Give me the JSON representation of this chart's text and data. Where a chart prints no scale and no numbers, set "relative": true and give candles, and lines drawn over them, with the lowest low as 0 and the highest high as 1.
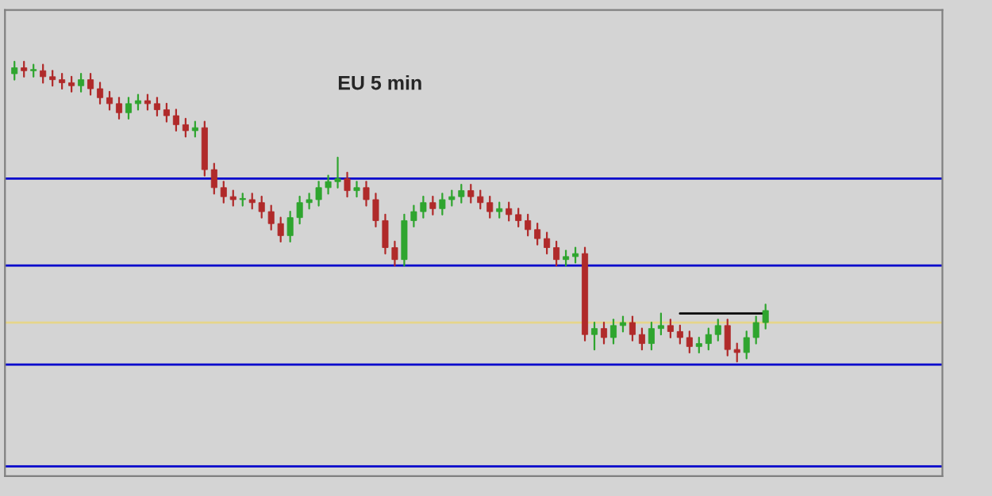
{
  "chart_data": {
    "type": "candlestick",
    "title": "EU 5 min",
    "relative": true,
    "categories": [
      null,
      null,
      null,
      null,
      null,
      null,
      null,
      null,
      null,
      null,
      null,
      null,
      null,
      null,
      null,
      null,
      null,
      null,
      null,
      null,
      null,
      null,
      null,
      null,
      null,
      null,
      null,
      null,
      null,
      null,
      null,
      null,
      null,
      null,
      null,
      null,
      null,
      null,
      null,
      null,
      null,
      null,
      null,
      null,
      null,
      null,
      null,
      null,
      null,
      null,
      null,
      null,
      null,
      null,
      null,
      null,
      null,
      null,
      null,
      null,
      null,
      null,
      null,
      null,
      null,
      null,
      null,
      null,
      null,
      null,
      null,
      null,
      null,
      null,
      null,
      null,
      null,
      null,
      null,
      null
    ],
    "colors": [
      "#2fa52f",
      "#b02a2a",
      "#2fa52f",
      "#b02a2a",
      "#b02a2a",
      "#b02a2a",
      "#b02a2a",
      "#2fa52f",
      "#b02a2a",
      "#b02a2a",
      "#b02a2a",
      "#b02a2a",
      "#2fa52f",
      "#2fa52f",
      "#b02a2a",
      "#b02a2a",
      "#b02a2a",
      "#b02a2a",
      "#b02a2a",
      "#2fa52f",
      "#b02a2a",
      "#b02a2a",
      "#b02a2a",
      "#b02a2a",
      "#2fa52f",
      "#b02a2a",
      "#b02a2a",
      "#b02a2a",
      "#b02a2a",
      "#2fa52f",
      "#2fa52f",
      "#2fa52f",
      "#2fa52f",
      "#2fa52f",
      "#2fa52f",
      "#b02a2a",
      "#2fa52f",
      "#b02a2a",
      "#b02a2a",
      "#b02a2a",
      "#b02a2a",
      "#2fa52f",
      "#2fa52f",
      "#2fa52f",
      "#b02a2a",
      "#2fa52f",
      "#2fa52f",
      "#2fa52f",
      "#b02a2a",
      "#b02a2a",
      "#b02a2a",
      "#2fa52f",
      "#b02a2a",
      "#b02a2a",
      "#b02a2a",
      "#b02a2a",
      "#b02a2a",
      "#b02a2a",
      "#2fa52f",
      "#2fa52f",
      "#b02a2a",
      "#2fa52f",
      "#b02a2a",
      "#2fa52f",
      "#2fa52f",
      "#b02a2a",
      "#b02a2a",
      "#2fa52f",
      "#2fa52f",
      "#b02a2a",
      "#b02a2a",
      "#b02a2a",
      "#2fa52f",
      "#2fa52f",
      "#2fa52f",
      "#b02a2a",
      "#b02a2a",
      "#2fa52f",
      "#2fa52f",
      "#2fa52f"
    ],
    "ohlc": [
      [
        0.96,
        1.0,
        0.94,
        0.98
      ],
      [
        0.98,
        1.0,
        0.95,
        0.97
      ],
      [
        0.97,
        0.99,
        0.95,
        0.97
      ],
      [
        0.97,
        0.99,
        0.93,
        0.95
      ],
      [
        0.95,
        0.97,
        0.92,
        0.94
      ],
      [
        0.94,
        0.96,
        0.91,
        0.93
      ],
      [
        0.93,
        0.95,
        0.9,
        0.92
      ],
      [
        0.92,
        0.96,
        0.9,
        0.94
      ],
      [
        0.94,
        0.96,
        0.89,
        0.91
      ],
      [
        0.91,
        0.93,
        0.86,
        0.88
      ],
      [
        0.88,
        0.9,
        0.84,
        0.86
      ],
      [
        0.86,
        0.88,
        0.81,
        0.83
      ],
      [
        0.83,
        0.88,
        0.81,
        0.86
      ],
      [
        0.86,
        0.89,
        0.84,
        0.87
      ],
      [
        0.87,
        0.89,
        0.84,
        0.86
      ],
      [
        0.86,
        0.88,
        0.82,
        0.84
      ],
      [
        0.84,
        0.86,
        0.8,
        0.82
      ],
      [
        0.82,
        0.84,
        0.77,
        0.79
      ],
      [
        0.79,
        0.81,
        0.75,
        0.77
      ],
      [
        0.77,
        0.8,
        0.75,
        0.78
      ],
      [
        0.78,
        0.8,
        0.62,
        0.64
      ],
      [
        0.64,
        0.66,
        0.56,
        0.58
      ],
      [
        0.58,
        0.6,
        0.53,
        0.55
      ],
      [
        0.55,
        0.57,
        0.52,
        0.54
      ],
      [
        0.54,
        0.56,
        0.52,
        0.54
      ],
      [
        0.54,
        0.56,
        0.51,
        0.53
      ],
      [
        0.53,
        0.55,
        0.48,
        0.5
      ],
      [
        0.5,
        0.52,
        0.44,
        0.46
      ],
      [
        0.46,
        0.48,
        0.4,
        0.42
      ],
      [
        0.42,
        0.5,
        0.4,
        0.48
      ],
      [
        0.48,
        0.55,
        0.46,
        0.53
      ],
      [
        0.53,
        0.56,
        0.51,
        0.54
      ],
      [
        0.54,
        0.6,
        0.52,
        0.58
      ],
      [
        0.58,
        0.62,
        0.56,
        0.6
      ],
      [
        0.6,
        0.68,
        0.58,
        0.61
      ],
      [
        0.61,
        0.63,
        0.55,
        0.57
      ],
      [
        0.57,
        0.6,
        0.55,
        0.58
      ],
      [
        0.58,
        0.6,
        0.52,
        0.54
      ],
      [
        0.54,
        0.56,
        0.45,
        0.47
      ],
      [
        0.47,
        0.49,
        0.36,
        0.38
      ],
      [
        0.38,
        0.4,
        0.32,
        0.34
      ],
      [
        0.34,
        0.49,
        0.32,
        0.47
      ],
      [
        0.47,
        0.52,
        0.45,
        0.5
      ],
      [
        0.5,
        0.55,
        0.48,
        0.53
      ],
      [
        0.53,
        0.55,
        0.49,
        0.51
      ],
      [
        0.51,
        0.56,
        0.49,
        0.54
      ],
      [
        0.54,
        0.57,
        0.52,
        0.55
      ],
      [
        0.55,
        0.59,
        0.53,
        0.57
      ],
      [
        0.57,
        0.59,
        0.53,
        0.55
      ],
      [
        0.55,
        0.57,
        0.51,
        0.53
      ],
      [
        0.53,
        0.55,
        0.48,
        0.5
      ],
      [
        0.5,
        0.53,
        0.48,
        0.51
      ],
      [
        0.51,
        0.53,
        0.47,
        0.49
      ],
      [
        0.49,
        0.51,
        0.45,
        0.47
      ],
      [
        0.47,
        0.49,
        0.42,
        0.44
      ],
      [
        0.44,
        0.46,
        0.39,
        0.41
      ],
      [
        0.41,
        0.43,
        0.36,
        0.38
      ],
      [
        0.38,
        0.4,
        0.32,
        0.34
      ],
      [
        0.34,
        0.37,
        0.32,
        0.35
      ],
      [
        0.35,
        0.38,
        0.33,
        0.36
      ],
      [
        0.36,
        0.38,
        0.07,
        0.09
      ],
      [
        0.09,
        0.13,
        0.04,
        0.11
      ],
      [
        0.11,
        0.13,
        0.06,
        0.08
      ],
      [
        0.08,
        0.14,
        0.06,
        0.12
      ],
      [
        0.12,
        0.15,
        0.1,
        0.13
      ],
      [
        0.13,
        0.15,
        0.07,
        0.09
      ],
      [
        0.09,
        0.11,
        0.04,
        0.06
      ],
      [
        0.06,
        0.13,
        0.04,
        0.11
      ],
      [
        0.11,
        0.16,
        0.09,
        0.12
      ],
      [
        0.12,
        0.14,
        0.08,
        0.1
      ],
      [
        0.1,
        0.12,
        0.06,
        0.08
      ],
      [
        0.08,
        0.1,
        0.03,
        0.05
      ],
      [
        0.05,
        0.08,
        0.03,
        0.06
      ],
      [
        0.06,
        0.11,
        0.04,
        0.09
      ],
      [
        0.09,
        0.14,
        0.07,
        0.12
      ],
      [
        0.12,
        0.14,
        0.02,
        0.04
      ],
      [
        0.04,
        0.06,
        0.0,
        0.03
      ],
      [
        0.03,
        0.1,
        0.01,
        0.08
      ],
      [
        0.08,
        0.15,
        0.06,
        0.13
      ],
      [
        0.13,
        0.19,
        0.11,
        0.17
      ]
    ],
    "series": [
      {
        "type": "line",
        "color": "#000000",
        "values": [
          null,
          null,
          null,
          null,
          null,
          null,
          null,
          null,
          null,
          null,
          null,
          null,
          null,
          null,
          null,
          null,
          null,
          null,
          null,
          null,
          null,
          null,
          null,
          null,
          null,
          null,
          null,
          null,
          null,
          null,
          null,
          null,
          null,
          null,
          null,
          null,
          null,
          null,
          null,
          null,
          null,
          null,
          null,
          null,
          null,
          null,
          null,
          null,
          null,
          null,
          null,
          null,
          null,
          null,
          null,
          null,
          null,
          null,
          null,
          null,
          null,
          null,
          null,
          null,
          null,
          null,
          null,
          null,
          null,
          null,
          0.16,
          0.16,
          0.16,
          0.16,
          0.16,
          0.16,
          0.16,
          0.16,
          0.16,
          0.16
        ]
      }
    ],
    "ref_lines": [
      {
        "axis": "y",
        "value": 0.61,
        "color": "#0000cc"
      },
      {
        "axis": "y",
        "value": 0.32,
        "color": "#0000cc"
      },
      {
        "axis": "y",
        "value": -0.01,
        "color": "#0000cc"
      },
      {
        "axis": "y",
        "value": -0.35,
        "color": "#0000cc"
      },
      {
        "axis": "y",
        "value": 0.13,
        "color": "#e6d58a"
      }
    ]
  }
}
